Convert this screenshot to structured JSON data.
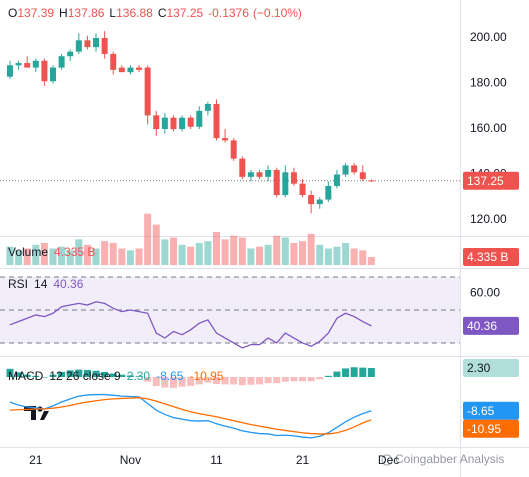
{
  "chart_data": [
    {
      "type": "candlestick",
      "ohlc_letters": [
        "O",
        "H",
        "L",
        "C"
      ],
      "change": -0.1376,
      "change_pct_label": "(−0.10%)",
      "open": [
        183,
        188,
        189,
        187,
        190,
        181,
        187,
        192,
        194,
        199,
        196,
        200,
        193,
        187,
        185,
        187,
        187,
        166,
        160,
        165,
        160,
        165,
        161,
        168,
        171,
        156,
        155,
        147,
        139,
        141,
        139,
        142,
        131,
        141,
        136,
        131,
        127,
        129,
        135,
        140,
        144,
        141,
        137.39
      ],
      "high": [
        190,
        190,
        192,
        191,
        191,
        188,
        193,
        195,
        202,
        201,
        202,
        203,
        194,
        188,
        188,
        188,
        188,
        168,
        167,
        166,
        166,
        166,
        170,
        172,
        173,
        160,
        156,
        148,
        142,
        142,
        144,
        143,
        144,
        143,
        138,
        133,
        130,
        137,
        142,
        145,
        145,
        144,
        137.86
      ],
      "low": [
        182,
        186,
        187,
        185,
        179,
        180,
        186,
        190,
        193,
        195,
        194,
        191,
        184,
        185,
        184,
        185,
        162,
        157,
        158,
        159,
        159,
        160,
        160,
        166,
        155,
        154,
        146,
        138,
        137,
        138,
        137,
        130,
        130,
        135,
        130,
        123,
        125,
        128,
        134,
        139,
        140,
        137,
        136.88
      ],
      "close": [
        188,
        189,
        187,
        190,
        181,
        187,
        192,
        194,
        199,
        196,
        200,
        193,
        186,
        185,
        187,
        186,
        166,
        160,
        165,
        160,
        165,
        161,
        168,
        171,
        156,
        155,
        147,
        139,
        141,
        139,
        142,
        131,
        141,
        136,
        131,
        127,
        129,
        135,
        140,
        144,
        141,
        138,
        137.25
      ],
      "up_color": "#26a69a",
      "down_color": "#ef5350",
      "ylim": [
        113,
        216.7
      ],
      "yticks": [
        {
          "value": 120,
          "label": "120.00"
        },
        {
          "value": 140,
          "label": "140.00"
        },
        {
          "value": 160,
          "label": "160.00"
        },
        {
          "value": 180,
          "label": "180.00"
        },
        {
          "value": 200,
          "label": "200.00"
        }
      ],
      "xlim": [
        -1.16,
        52.3
      ],
      "xticks": [
        {
          "value": 3,
          "label": "21"
        },
        {
          "value": 14,
          "label": "Nov"
        },
        {
          "value": 24,
          "label": "11"
        },
        {
          "value": 34,
          "label": "21"
        },
        {
          "value": 44,
          "label": "Dec"
        }
      ],
      "watermark": "Coingabber Analysis"
    },
    {
      "type": "bar",
      "name": "Volume",
      "last_label": "4.335 B",
      "values": [
        10,
        8,
        9,
        11,
        12,
        9,
        10,
        8,
        14,
        11,
        9,
        13,
        12,
        9,
        8,
        9,
        28,
        22,
        14,
        15,
        11,
        10,
        12,
        13,
        18,
        14,
        16,
        15,
        9,
        10,
        11,
        16,
        15,
        12,
        13,
        17,
        11,
        9,
        10,
        12,
        9,
        8,
        4.335
      ],
      "ylim": [
        0,
        30
      ]
    },
    {
      "type": "line",
      "name": "RSI",
      "params": "14",
      "color": "#7e57c2",
      "values": [
        41,
        43,
        45,
        47,
        46,
        48,
        52,
        53,
        54,
        53,
        55,
        54,
        51,
        49,
        50,
        49,
        48,
        36,
        33,
        37,
        35,
        38,
        42,
        44,
        36,
        33,
        30,
        27,
        29,
        29,
        33,
        30,
        36,
        33,
        30,
        28,
        31,
        36,
        45,
        48,
        46,
        43,
        40.36
      ],
      "ylim": [
        22.1,
        74.85
      ],
      "yticks": [
        {
          "value": 60,
          "label": "60.00"
        }
      ],
      "bands": [
        30,
        50,
        70
      ]
    },
    {
      "type": "macd",
      "name": "MACD",
      "params": "12 26 close 9",
      "ylim": [
        -17.95,
        5.13
      ],
      "series": [
        {
          "kind": "histogram",
          "up_color": "#26a69a",
          "down_color": "#f5a3a3",
          "last_label": "2.30",
          "values": [
            2.1,
            1.2,
            0.6,
            0.3,
            0,
            0.6,
            1.3,
            1.7,
            1.9,
            1.8,
            1.6,
            1.3,
            0.9,
            0.6,
            0.4,
            0.2,
            -1.2,
            -2.3,
            -2.7,
            -2.8,
            -2.5,
            -2.3,
            -1.9,
            -1.4,
            -1.8,
            -1.9,
            -1.9,
            -2.1,
            -2.0,
            -1.9,
            -1.6,
            -1.6,
            -1.2,
            -1.1,
            -1.1,
            -1.1,
            -0.6,
            0.3,
            1.4,
            2.2,
            2.5,
            2.4,
            2.3
          ]
        },
        {
          "kind": "line",
          "color": "#2196f3",
          "values": [
            -6.4,
            -7.2,
            -7.7,
            -7.9,
            -8.2,
            -7.4,
            -6.4,
            -5.6,
            -4.9,
            -4.6,
            -4.5,
            -4.5,
            -4.7,
            -4.9,
            -5.0,
            -5.1,
            -6.8,
            -8.5,
            -9.6,
            -10.4,
            -10.8,
            -11.2,
            -11.3,
            -11.2,
            -12.0,
            -12.6,
            -13.1,
            -13.8,
            -14.2,
            -14.5,
            -14.6,
            -15.0,
            -14.9,
            -15.1,
            -15.4,
            -15.6,
            -15.2,
            -14.3,
            -12.9,
            -11.5,
            -10.3,
            -9.4,
            -8.65
          ]
        },
        {
          "kind": "line",
          "color": "#ff6d00",
          "values": [
            -8.5,
            -8.4,
            -8.3,
            -8.2,
            -8.2,
            -8.0,
            -7.7,
            -7.3,
            -6.8,
            -6.4,
            -6.1,
            -5.8,
            -5.6,
            -5.5,
            -5.4,
            -5.3,
            -5.6,
            -6.2,
            -6.9,
            -7.6,
            -8.3,
            -8.9,
            -9.4,
            -9.8,
            -10.2,
            -10.7,
            -11.2,
            -11.7,
            -12.2,
            -12.6,
            -13.0,
            -13.4,
            -13.7,
            -14.0,
            -14.3,
            -14.5,
            -14.6,
            -14.6,
            -14.3,
            -13.7,
            -12.8,
            -11.8,
            -10.95
          ]
        }
      ]
    }
  ]
}
